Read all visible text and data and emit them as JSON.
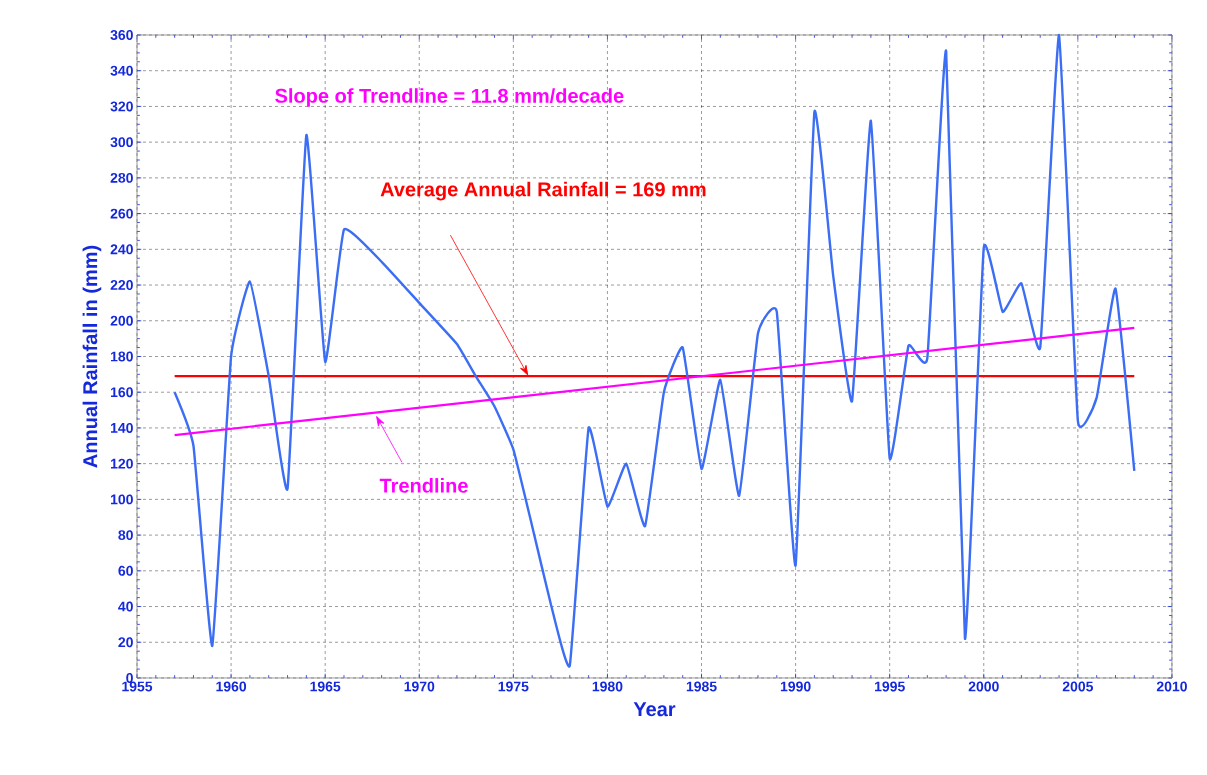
{
  "chart_data": {
    "type": "line",
    "xlabel": "Year",
    "ylabel": "Annual  Rainfall in (mm)",
    "xlim": [
      1955,
      2010
    ],
    "ylim": [
      0,
      360
    ],
    "xticks": [
      1955,
      1960,
      1965,
      1970,
      1975,
      1980,
      1985,
      1990,
      1995,
      2000,
      2005,
      2010
    ],
    "yticks": [
      0,
      20,
      40,
      60,
      80,
      100,
      120,
      140,
      160,
      180,
      200,
      220,
      240,
      260,
      280,
      300,
      320,
      340,
      360
    ],
    "grid": true,
    "marker": "none",
    "line_style": "solid",
    "series": [
      {
        "color": "#3b6ef5",
        "x": [
          1957,
          1958,
          1959,
          1960,
          1961,
          1962,
          1963,
          1964,
          1965,
          1966,
          1968,
          1970,
          1972,
          1973,
          1974,
          1975,
          1976,
          1977,
          1978,
          1979,
          1980,
          1981,
          1982,
          1983,
          1984,
          1985,
          1986,
          1987,
          1988,
          1989,
          1990,
          1991,
          1992,
          1993,
          1994,
          1995,
          1996,
          1997,
          1998,
          1999,
          2000,
          2001,
          2002,
          2003,
          2004,
          2005,
          2006,
          2007,
          2008
        ],
        "values": [
          160,
          130,
          18,
          180,
          222,
          169,
          106,
          304,
          177,
          251,
          233,
          210,
          187,
          169,
          152,
          128,
          85,
          41,
          7,
          140,
          96,
          120,
          85,
          160,
          185,
          117,
          167,
          102,
          193,
          205,
          63,
          317,
          225,
          155,
          312,
          123,
          186,
          179,
          351,
          22,
          241,
          205,
          221,
          185,
          360,
          144,
          157,
          218,
          116
        ]
      },
      {
        "type": "line",
        "color": "#ff00ff",
        "x": [
          1957,
          2008
        ],
        "values": [
          136,
          196
        ]
      }
    ],
    "ref_lines": [
      {
        "axis": "y",
        "value": 169,
        "label": "Average Annual Rainfall = 169 mm",
        "color": "#ff0000"
      }
    ],
    "annotations": [
      "Slope of Trendline = 11.8 mm/decade",
      {
        "text": "Trendline",
        "x": 1967.7,
        "y": 147
      }
    ]
  }
}
